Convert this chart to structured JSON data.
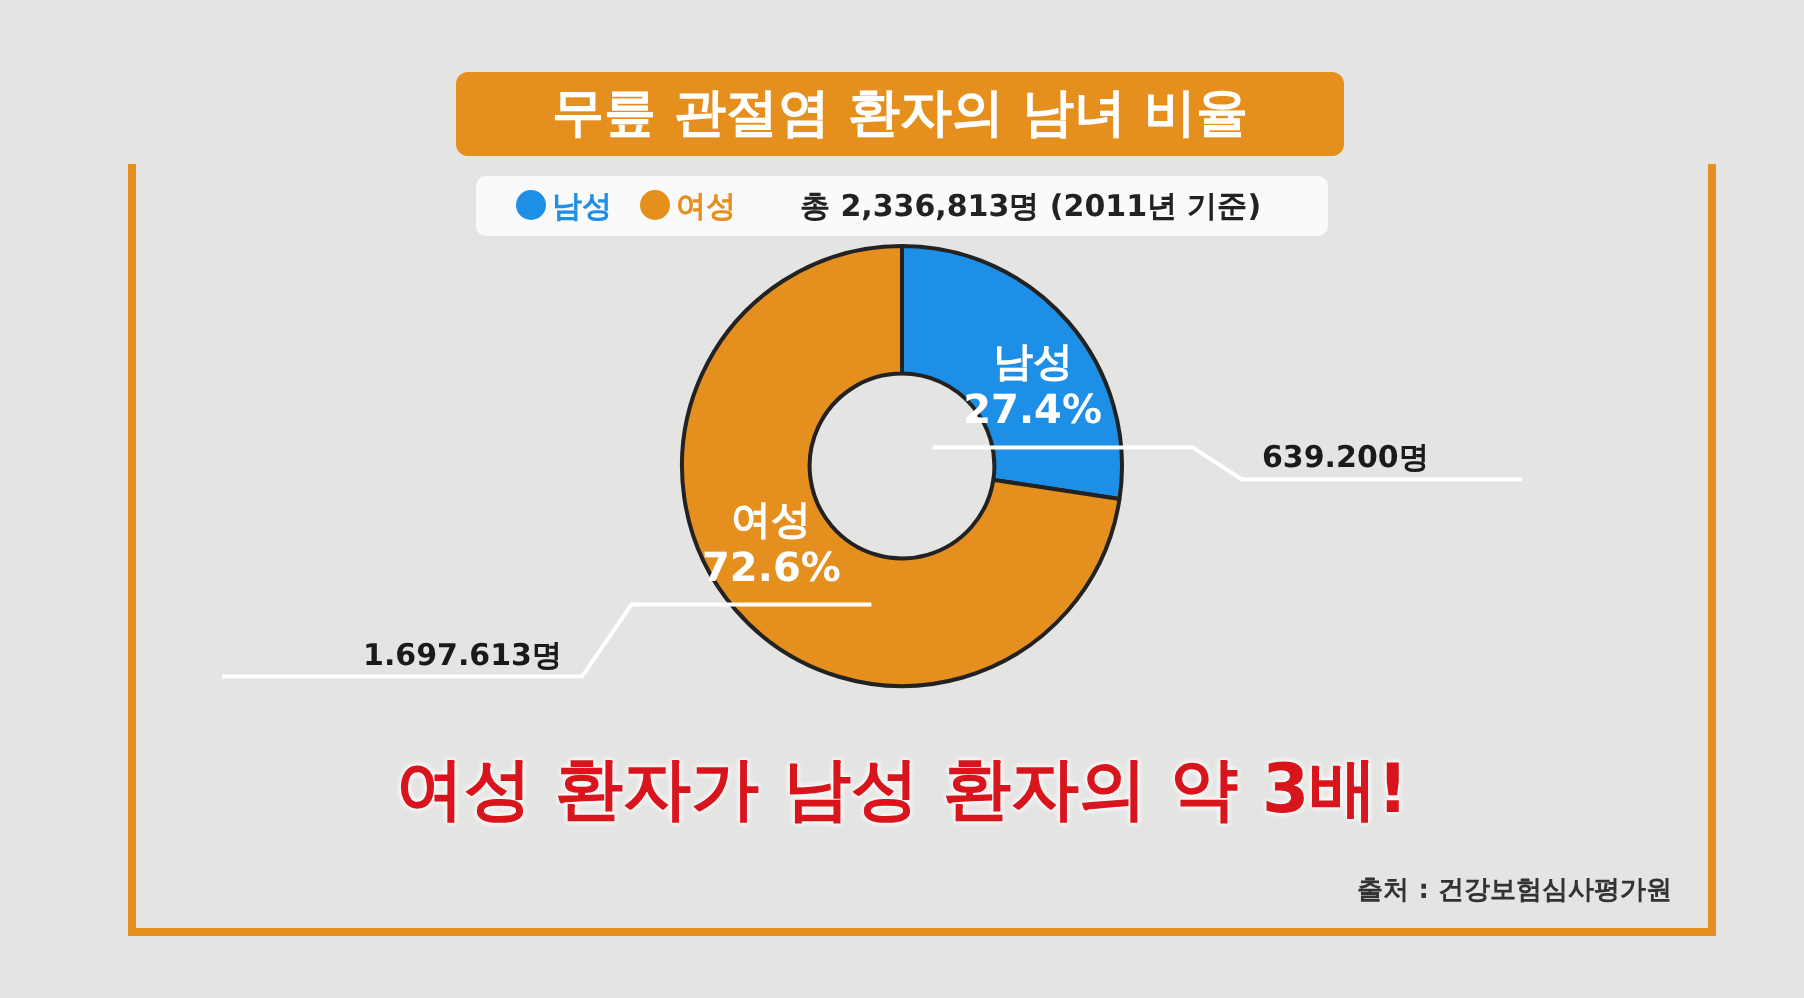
{
  "chart_data": {
    "type": "donut",
    "title": "무릎 관절염 환자의 남녀 비율",
    "subtitle": "총 2,336,813명 (2011년 기준)",
    "categories": [
      "남성",
      "여성"
    ],
    "values": [
      27.4,
      72.6
    ],
    "value_labels": [
      "27.4%",
      "72.6%"
    ],
    "colors": [
      "#1e8fe6",
      "#e5901e"
    ],
    "legend": "top",
    "annotations": [
      "639.200명",
      "1.697.613명",
      "여성 환자가 남성 환자의 약 3배!",
      "출처 : 건강보험심사평가원"
    ]
  }
}
